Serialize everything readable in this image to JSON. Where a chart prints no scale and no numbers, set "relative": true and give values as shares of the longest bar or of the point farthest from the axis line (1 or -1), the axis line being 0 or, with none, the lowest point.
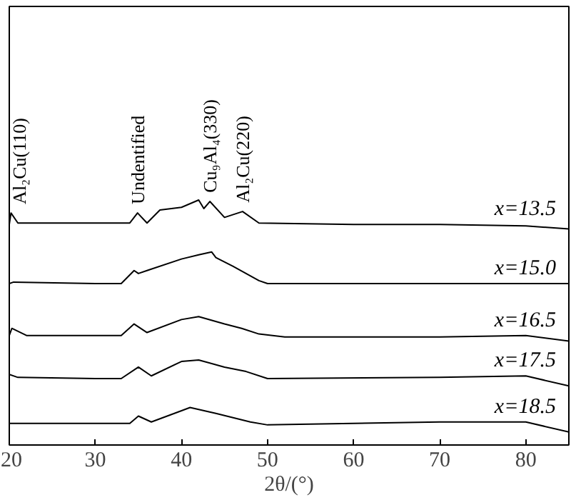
{
  "chart_data": {
    "type": "line",
    "relative": true,
    "xlabel": "2θ/(°)",
    "xlim": [
      20,
      85
    ],
    "xticks": [
      20,
      30,
      40,
      50,
      60,
      70,
      80
    ],
    "grid": false,
    "marker": "none",
    "line_style": "solid",
    "series": [
      {
        "name": "x=13.5",
        "color": "#000000",
        "x": [
          20,
          20.2,
          21,
          30,
          34,
          34.9,
          36,
          37.5,
          40,
          42,
          42.6,
          43.3,
          45,
          47.1,
          49,
          60,
          70,
          80,
          85
        ],
        "values": [
          0.9,
          0.947,
          0.906,
          0.906,
          0.906,
          0.947,
          0.906,
          0.959,
          0.97,
          1.0,
          0.965,
          0.994,
          0.929,
          0.953,
          0.906,
          0.9,
          0.9,
          0.894,
          0.882
        ]
      },
      {
        "name": "x=15.0",
        "color": "#000000",
        "x": [
          20,
          20.5,
          30,
          33,
          34.5,
          35,
          36,
          40,
          42,
          43.5,
          44,
          46,
          49,
          50,
          60,
          70,
          85
        ],
        "values": [
          0.659,
          0.665,
          0.659,
          0.659,
          0.712,
          0.7,
          0.712,
          0.759,
          0.776,
          0.788,
          0.765,
          0.729,
          0.671,
          0.659,
          0.659,
          0.659,
          0.659
        ]
      },
      {
        "name": "x=16.5",
        "color": "#000000",
        "x": [
          20,
          20.3,
          22,
          30,
          33,
          34.5,
          36,
          40,
          42,
          45,
          47,
          49,
          52,
          70,
          80,
          85
        ],
        "values": [
          0.447,
          0.476,
          0.447,
          0.447,
          0.447,
          0.494,
          0.459,
          0.512,
          0.524,
          0.494,
          0.476,
          0.453,
          0.441,
          0.441,
          0.447,
          0.424
        ]
      },
      {
        "name": "x=17.5",
        "color": "#000000",
        "x": [
          20,
          21,
          30,
          33,
          35,
          36.5,
          40,
          42,
          45,
          47.5,
          50,
          70,
          80,
          85
        ],
        "values": [
          0.288,
          0.276,
          0.271,
          0.271,
          0.318,
          0.282,
          0.341,
          0.347,
          0.318,
          0.3,
          0.271,
          0.276,
          0.282,
          0.241
        ]
      },
      {
        "name": "x=18.5",
        "color": "#000000",
        "x": [
          20,
          30,
          34,
          35,
          36.5,
          41,
          44,
          48,
          50,
          70,
          80,
          85
        ],
        "values": [
          0.088,
          0.088,
          0.088,
          0.118,
          0.094,
          0.153,
          0.129,
          0.094,
          0.082,
          0.094,
          0.094,
          0.053
        ]
      }
    ],
    "annotations": [
      {
        "text": "Al₂Cu(110)",
        "x": 20.2,
        "y": 0.947
      },
      {
        "text": "Undentified",
        "x": 34.9,
        "y": 0.947
      },
      {
        "text": "Cu₉Al₄(330)",
        "x": 43.3,
        "y": 0.994
      },
      {
        "text": "Al₂Cu(220)",
        "x": 47.1,
        "y": 0.953
      }
    ]
  }
}
